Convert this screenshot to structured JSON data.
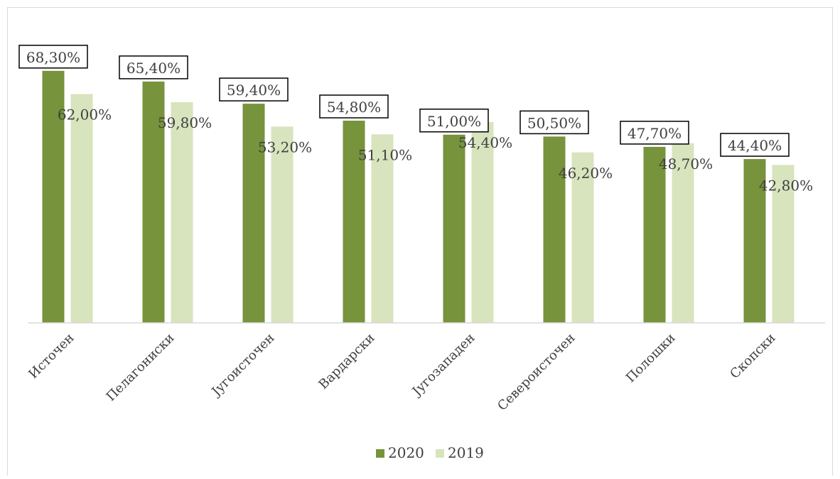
{
  "chart_data": {
    "type": "bar",
    "categories": [
      "Источен",
      "Пелагониски",
      "Југоисточен",
      "Вардарски",
      "Југозападен",
      "Североисточен",
      "Полошки",
      "Скопски"
    ],
    "series": [
      {
        "name": "2020",
        "values": [
          68.3,
          65.4,
          59.4,
          54.8,
          51.0,
          50.5,
          47.7,
          44.4
        ],
        "labels": [
          "68,30%",
          "65,40%",
          "59,40%",
          "54,80%",
          "51,00%",
          "50,50%",
          "47,70%",
          "44,40%"
        ],
        "color": "#77933c"
      },
      {
        "name": "2019",
        "values": [
          62.0,
          59.8,
          53.2,
          51.1,
          54.4,
          46.2,
          48.7,
          42.8
        ],
        "labels": [
          "62,00%",
          "59,80%",
          "53,20%",
          "51,10%",
          "54,40%",
          "46,20%",
          "48,70%",
          "42,80%"
        ],
        "color": "#d7e4bd"
      }
    ],
    "ylim": [
      0,
      70
    ],
    "grid": false,
    "legend": "bottom"
  }
}
